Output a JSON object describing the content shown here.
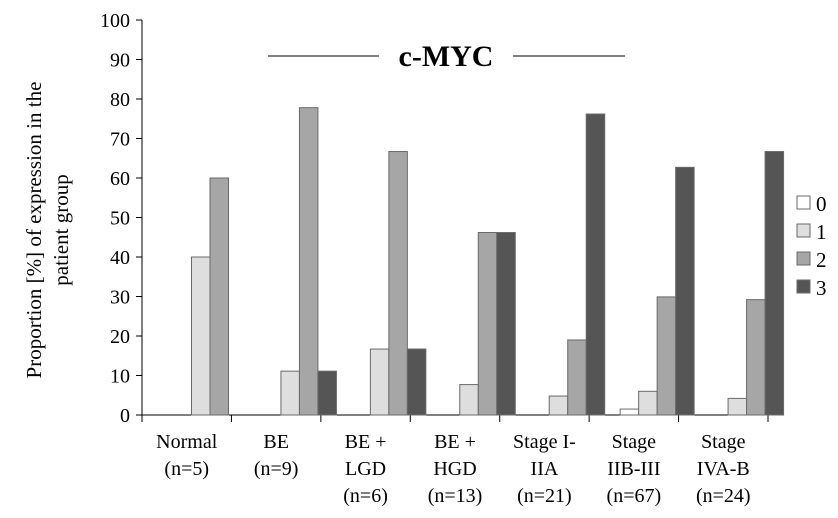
{
  "chart_data": {
    "type": "bar",
    "title": "c-MYC",
    "ylabel_lines": [
      "Proportion [%] of expression in the",
      "patient group"
    ],
    "ylim": [
      0,
      100
    ],
    "yticks": [
      "0",
      "10",
      "20",
      "30",
      "40",
      "50",
      "60",
      "70",
      "80",
      "90",
      "100"
    ],
    "categories": [
      [
        "Normal",
        "(n=5)"
      ],
      [
        "BE",
        "(n=9)"
      ],
      [
        "BE +",
        "LGD",
        "(n=6)"
      ],
      [
        "BE +",
        "HGD",
        "(n=13)"
      ],
      [
        "Stage I-",
        "IIA",
        "(n=21)"
      ],
      [
        "Stage",
        "IIB-III",
        "(n=67)"
      ],
      [
        "Stage",
        "IVA-B",
        "(n=24)"
      ]
    ],
    "series": [
      {
        "name": "0",
        "color": "#ffffff",
        "values": [
          0,
          0,
          0,
          0,
          0,
          1.5,
          0
        ]
      },
      {
        "name": "1",
        "color": "#dedede",
        "values": [
          40,
          11.1,
          16.7,
          7.7,
          4.8,
          6,
          4.2
        ]
      },
      {
        "name": "2",
        "color": "#a6a6a6",
        "values": [
          60,
          77.8,
          66.7,
          46.2,
          19,
          29.9,
          29.2
        ]
      },
      {
        "name": "3",
        "color": "#555555",
        "values": [
          0,
          11.1,
          16.7,
          46.2,
          76.2,
          62.7,
          66.7
        ]
      }
    ],
    "legend_position": "right",
    "grid": false
  }
}
